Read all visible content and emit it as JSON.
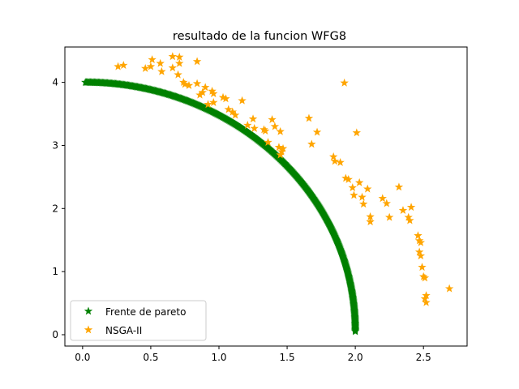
{
  "chart_data": {
    "type": "scatter",
    "title": "resultado de la funcion WFG8",
    "xlabel": "",
    "ylabel": "",
    "xlim": [
      -0.13,
      2.82
    ],
    "ylim": [
      -0.18,
      4.56
    ],
    "xticks": [
      0.0,
      0.5,
      1.0,
      1.5,
      2.0,
      2.5
    ],
    "xtick_labels": [
      "0.0",
      "0.5",
      "1.0",
      "1.5",
      "2.0",
      "2.5"
    ],
    "yticks": [
      0,
      1,
      2,
      3,
      4
    ],
    "ytick_labels": [
      "0",
      "1",
      "2",
      "3",
      "4"
    ],
    "grid": false,
    "legend_position": "lower-left",
    "series": [
      {
        "name": "Frente de pareto",
        "color": "#008000",
        "marker": "star",
        "shape": "quarter-ellipse x=2*sin(t), y=4*cos(t), t in [0, pi/2]",
        "points": [
          [
            0.02,
            4.0
          ],
          [
            0.1,
            4.0
          ],
          [
            0.2,
            3.99
          ],
          [
            0.3,
            3.96
          ],
          [
            0.4,
            3.92
          ],
          [
            0.5,
            3.87
          ],
          [
            0.6,
            3.82
          ],
          [
            0.7,
            3.75
          ],
          [
            0.8,
            3.67
          ],
          [
            0.9,
            3.57
          ],
          [
            1.0,
            3.46
          ],
          [
            1.1,
            3.34
          ],
          [
            1.2,
            3.2
          ],
          [
            1.3,
            3.04
          ],
          [
            1.4,
            2.86
          ],
          [
            1.5,
            2.65
          ],
          [
            1.6,
            2.4
          ],
          [
            1.7,
            2.11
          ],
          [
            1.8,
            1.74
          ],
          [
            1.85,
            1.52
          ],
          [
            1.9,
            1.25
          ],
          [
            1.95,
            0.89
          ],
          [
            1.98,
            0.56
          ],
          [
            2.0,
            0.05
          ]
        ]
      },
      {
        "name": "NSGA-II",
        "color": "#FFA500",
        "marker": "star",
        "points": [
          [
            0.26,
            4.25
          ],
          [
            0.3,
            4.27
          ],
          [
            0.46,
            4.22
          ],
          [
            0.5,
            4.25
          ],
          [
            0.51,
            4.36
          ],
          [
            0.57,
            4.3
          ],
          [
            0.58,
            4.17
          ],
          [
            0.66,
            4.41
          ],
          [
            0.66,
            4.23
          ],
          [
            0.7,
            4.12
          ],
          [
            0.71,
            4.4
          ],
          [
            0.71,
            4.3
          ],
          [
            0.74,
            4.0
          ],
          [
            0.75,
            3.97
          ],
          [
            0.78,
            3.95
          ],
          [
            0.84,
            4.33
          ],
          [
            0.84,
            3.98
          ],
          [
            0.86,
            3.8
          ],
          [
            0.88,
            3.84
          ],
          [
            0.9,
            3.92
          ],
          [
            0.92,
            3.65
          ],
          [
            0.95,
            3.86
          ],
          [
            0.96,
            3.82
          ],
          [
            0.96,
            3.68
          ],
          [
            1.03,
            3.76
          ],
          [
            1.05,
            3.74
          ],
          [
            1.07,
            3.57
          ],
          [
            1.1,
            3.53
          ],
          [
            1.12,
            3.48
          ],
          [
            1.17,
            3.71
          ],
          [
            1.21,
            3.32
          ],
          [
            1.25,
            3.42
          ],
          [
            1.26,
            3.27
          ],
          [
            1.33,
            3.25
          ],
          [
            1.34,
            3.23
          ],
          [
            1.36,
            3.05
          ],
          [
            1.39,
            3.41
          ],
          [
            1.41,
            3.3
          ],
          [
            1.44,
            2.97
          ],
          [
            1.45,
            3.22
          ],
          [
            1.45,
            2.85
          ],
          [
            1.46,
            2.9
          ],
          [
            1.47,
            2.95
          ],
          [
            1.66,
            3.43
          ],
          [
            1.68,
            3.02
          ],
          [
            1.72,
            3.21
          ],
          [
            1.84,
            2.82
          ],
          [
            1.85,
            2.75
          ],
          [
            1.89,
            2.73
          ],
          [
            1.92,
            3.99
          ],
          [
            1.93,
            2.48
          ],
          [
            1.95,
            2.46
          ],
          [
            1.98,
            2.33
          ],
          [
            1.99,
            2.21
          ],
          [
            2.01,
            3.2
          ],
          [
            2.03,
            2.41
          ],
          [
            2.05,
            2.18
          ],
          [
            2.06,
            2.07
          ],
          [
            2.09,
            2.31
          ],
          [
            2.11,
            1.87
          ],
          [
            2.11,
            1.79
          ],
          [
            2.2,
            2.16
          ],
          [
            2.23,
            2.08
          ],
          [
            2.25,
            1.86
          ],
          [
            2.32,
            2.34
          ],
          [
            2.35,
            1.97
          ],
          [
            2.39,
            1.86
          ],
          [
            2.4,
            1.81
          ],
          [
            2.41,
            2.02
          ],
          [
            2.46,
            1.57
          ],
          [
            2.47,
            1.49
          ],
          [
            2.47,
            1.31
          ],
          [
            2.48,
            1.46
          ],
          [
            2.48,
            1.25
          ],
          [
            2.49,
            1.07
          ],
          [
            2.5,
            0.92
          ],
          [
            2.51,
            0.9
          ],
          [
            2.51,
            0.57
          ],
          [
            2.52,
            0.62
          ],
          [
            2.52,
            0.51
          ],
          [
            2.69,
            0.73
          ]
        ]
      }
    ]
  }
}
